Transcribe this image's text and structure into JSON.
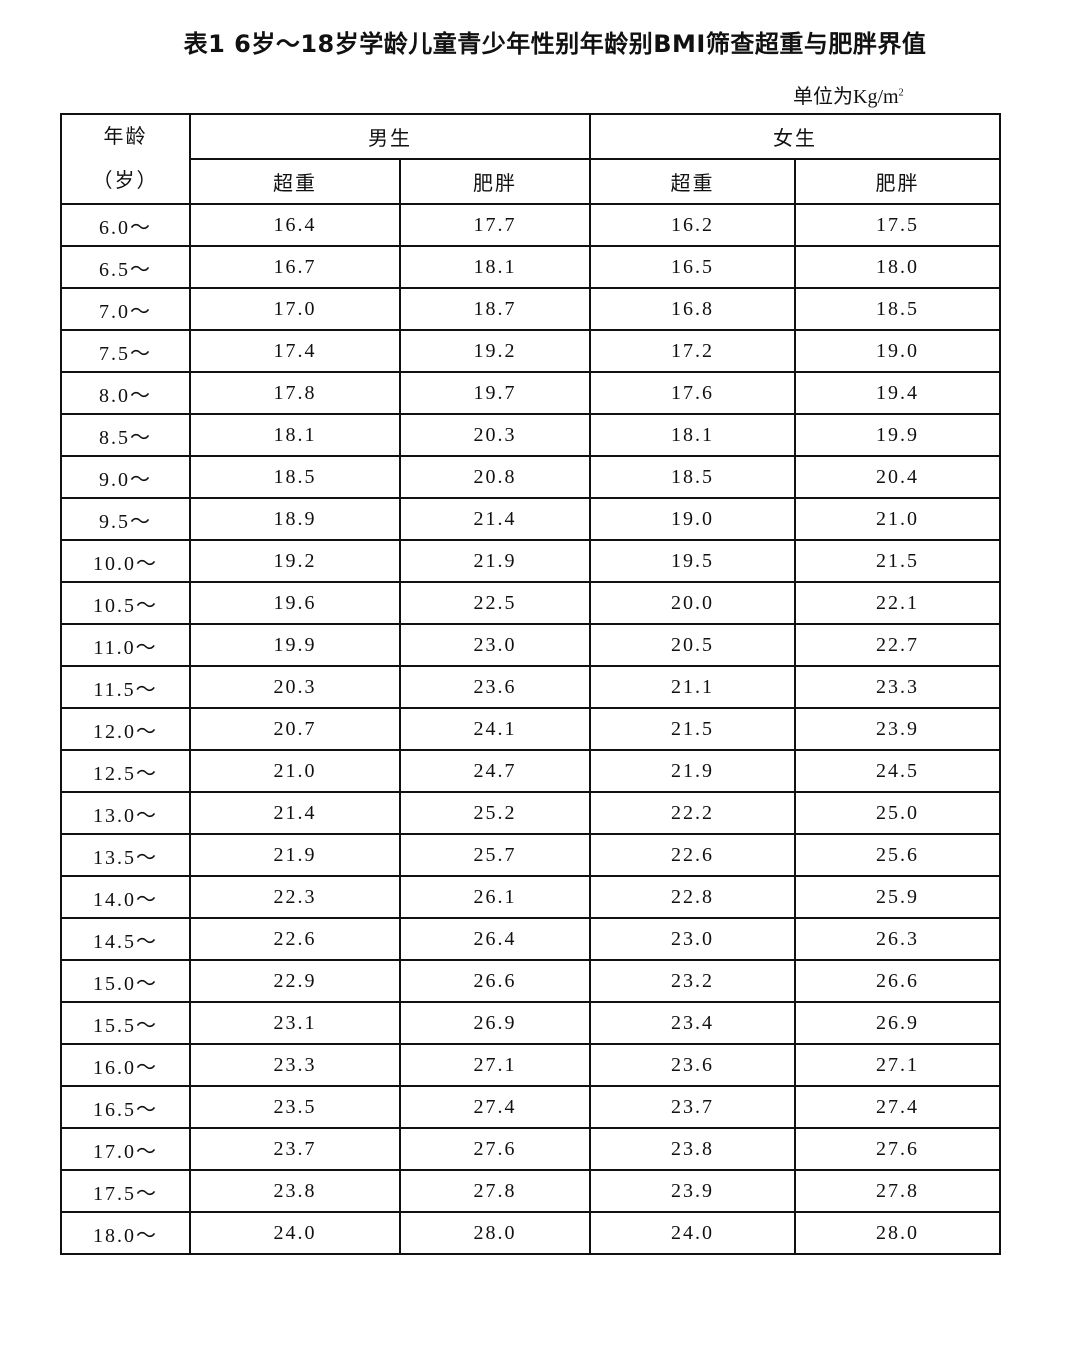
{
  "title": "表1 6岁～18岁学龄儿童青少年性别年龄别BMI筛查超重与肥胖界值",
  "unit": "单位为Kg/m",
  "unit_sup": "2",
  "header": {
    "age_line1": "年龄",
    "age_line2": "（岁）",
    "male": "男生",
    "female": "女生",
    "overweight": "超重",
    "obese": "肥胖"
  },
  "rows": [
    [
      "6.0～",
      "16.4",
      "17.7",
      "16.2",
      "17.5"
    ],
    [
      "6.5～",
      "16.7",
      "18.1",
      "16.5",
      "18.0"
    ],
    [
      "7.0～",
      "17.0",
      "18.7",
      "16.8",
      "18.5"
    ],
    [
      "7.5～",
      "17.4",
      "19.2",
      "17.2",
      "19.0"
    ],
    [
      "8.0～",
      "17.8",
      "19.7",
      "17.6",
      "19.4"
    ],
    [
      "8.5～",
      "18.1",
      "20.3",
      "18.1",
      "19.9"
    ],
    [
      "9.0～",
      "18.5",
      "20.8",
      "18.5",
      "20.4"
    ],
    [
      "9.5～",
      "18.9",
      "21.4",
      "19.0",
      "21.0"
    ],
    [
      "10.0～",
      "19.2",
      "21.9",
      "19.5",
      "21.5"
    ],
    [
      "10.5～",
      "19.6",
      "22.5",
      "20.0",
      "22.1"
    ],
    [
      "11.0～",
      "19.9",
      "23.0",
      "20.5",
      "22.7"
    ],
    [
      "11.5～",
      "20.3",
      "23.6",
      "21.1",
      "23.3"
    ],
    [
      "12.0～",
      "20.7",
      "24.1",
      "21.5",
      "23.9"
    ],
    [
      "12.5～",
      "21.0",
      "24.7",
      "21.9",
      "24.5"
    ],
    [
      "13.0～",
      "21.4",
      "25.2",
      "22.2",
      "25.0"
    ],
    [
      "13.5～",
      "21.9",
      "25.7",
      "22.6",
      "25.6"
    ],
    [
      "14.0～",
      "22.3",
      "26.1",
      "22.8",
      "25.9"
    ],
    [
      "14.5～",
      "22.6",
      "26.4",
      "23.0",
      "26.3"
    ],
    [
      "15.0～",
      "22.9",
      "26.6",
      "23.2",
      "26.6"
    ],
    [
      "15.5～",
      "23.1",
      "26.9",
      "23.4",
      "26.9"
    ],
    [
      "16.0～",
      "23.3",
      "27.1",
      "23.6",
      "27.1"
    ],
    [
      "16.5～",
      "23.5",
      "27.4",
      "23.7",
      "27.4"
    ],
    [
      "17.0～",
      "23.7",
      "27.6",
      "23.8",
      "27.6"
    ],
    [
      "17.5～",
      "23.8",
      "27.8",
      "23.9",
      "27.8"
    ],
    [
      "18.0～",
      "24.0",
      "28.0",
      "24.0",
      "28.0"
    ]
  ]
}
